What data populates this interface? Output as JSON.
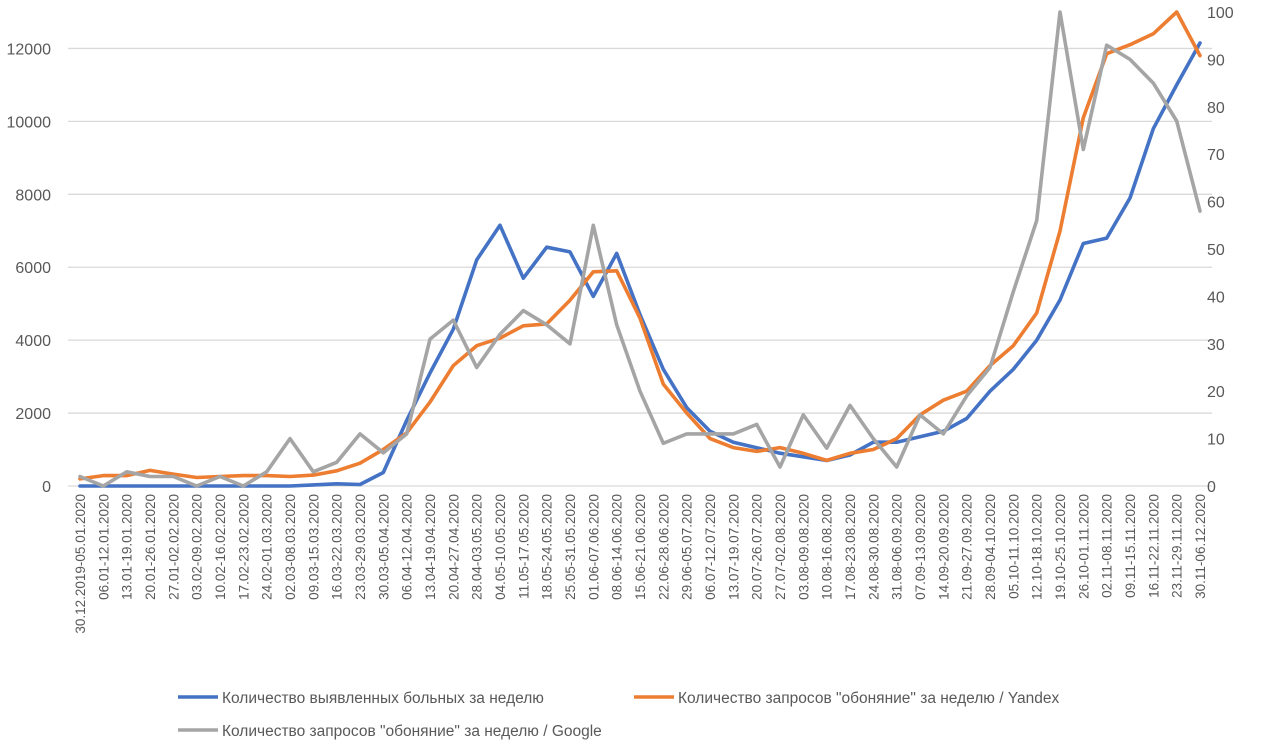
{
  "chart_data": {
    "type": "line",
    "title": "",
    "xlabel": "",
    "ylabel": "",
    "y_left": {
      "range": [
        0,
        13000
      ],
      "ticks": [
        0,
        2000,
        4000,
        6000,
        8000,
        10000,
        12000
      ]
    },
    "y_right": {
      "range": [
        0,
        100
      ],
      "ticks": [
        0,
        10,
        20,
        30,
        40,
        50,
        60,
        70,
        80,
        90,
        100
      ]
    },
    "grid": true,
    "legend_position": "bottom",
    "categories": [
      "30.12.2019-05.01.2020",
      "06.01-12.01.2020",
      "13.01-19.01.2020",
      "20.01-26.01.2020",
      "27.01-02.02.2020",
      "03.02-09.02.2020",
      "10.02-16.02.2020",
      "17.02-23.02.2020",
      "24.02-01.03.2020",
      "02.03-08.03.2020",
      "09.03-15.03.2020",
      "16.03-22.03.2020",
      "23.03-29.03.2020",
      "30.03-05.04.2020",
      "06.04-12.04.2020",
      "13.04-19.04.2020",
      "20.04-27.04.2020",
      "28.04-03.05.2020",
      "04.05-10.05.2020",
      "11.05-17.05.2020",
      "18.05-24.05.2020",
      "25.05-31.05.2020",
      "01.06-07.06.2020",
      "08.06-14.06.2020",
      "15.06-21.06.2020",
      "22.06-28.06.2020",
      "29.06-05.07.2020",
      "06.07-12.07.2020",
      "13.07-19.07.2020",
      "20.07-26.07.2020",
      "27.07-02.08.2020",
      "03.08-09.08.2020",
      "10.08-16.08.2020",
      "17.08-23.08.2020",
      "24.08-30.08.2020",
      "31.08-06.09.2020",
      "07.09-13.09.2020",
      "14.09-20.09.2020",
      "21.09-27.09.2020",
      "28.09-04.10.2020",
      "05.10-11.10.2020",
      "12.10-18.10.2020",
      "19.10-25.10.2020",
      "26.10-01.11.2020",
      "02.11-08.11.2020",
      "09.11-15.11.2020",
      "16.11-22.11.2020",
      "23.11-29.11.2020",
      "30.11-06.12.2020"
    ],
    "series": [
      {
        "name": "Количество выявленных больных за неделю",
        "axis": "left",
        "color": "#4472C4",
        "values": [
          0,
          0,
          0,
          0,
          0,
          0,
          0,
          0,
          0,
          0,
          30,
          60,
          40,
          370,
          1800,
          3100,
          4300,
          6200,
          7150,
          5700,
          6550,
          6420,
          5200,
          6380,
          4700,
          3200,
          2150,
          1500,
          1200,
          1050,
          900,
          800,
          700,
          850,
          1200,
          1200,
          1350,
          1500,
          1850,
          2600,
          3200,
          4000,
          5100,
          6650,
          6800,
          7900,
          9800,
          11000,
          12150
        ]
      },
      {
        "name": "Количество запросов \"обоняние\" за неделю / Yandex",
        "axis": "right",
        "color": "#ED7D31",
        "values": [
          1.5,
          2.2,
          2.2,
          3.3,
          2.5,
          1.8,
          2,
          2.2,
          2.2,
          2,
          2.3,
          3.2,
          4.8,
          7.7,
          11.2,
          17.7,
          25.4,
          29.6,
          31.2,
          33.8,
          34.2,
          39.2,
          45.2,
          45.4,
          35.4,
          21.5,
          15.4,
          10,
          8.1,
          7.3,
          8.1,
          6.9,
          5.4,
          6.9,
          7.7,
          10,
          15,
          18.1,
          20,
          25.4,
          29.6,
          36.5,
          53.8,
          77.7,
          91.2,
          93.1,
          95.4,
          100,
          90.8
        ]
      },
      {
        "name": "Количество запросов \"обоняние\" за неделю / Google",
        "axis": "right",
        "color": "#A5A5A5",
        "values": [
          2,
          0,
          3,
          2,
          2,
          0,
          2,
          0,
          3,
          10,
          3,
          5,
          11,
          7,
          11,
          31,
          35,
          25,
          32,
          37,
          34,
          30,
          55,
          34,
          20,
          9,
          11,
          11,
          11,
          13,
          4,
          15,
          8,
          17,
          10,
          4,
          15,
          11,
          19,
          25,
          41,
          56,
          100,
          71,
          93,
          90,
          85,
          77,
          58
        ]
      }
    ]
  }
}
